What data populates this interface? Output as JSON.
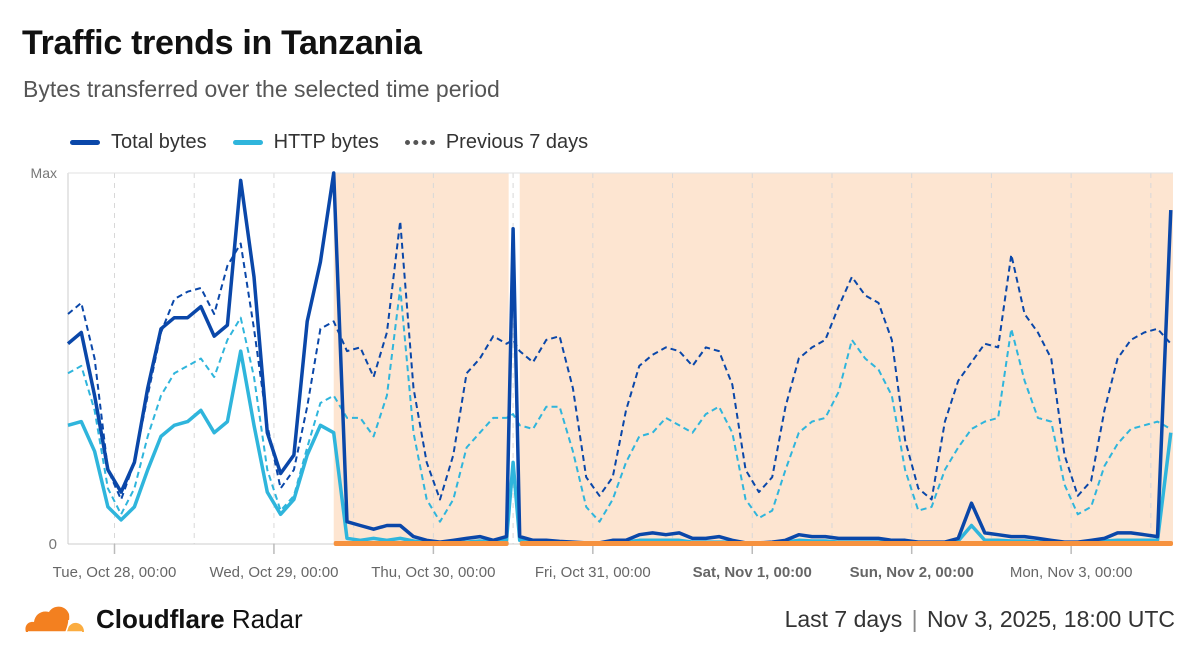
{
  "header": {
    "title": "Traffic trends in Tanzania",
    "subtitle": "Bytes transferred over the selected time period"
  },
  "footer": {
    "brand_bold": "Cloudflare",
    "brand_regular": "Radar",
    "period": "Last 7 days",
    "separator": "|",
    "timestamp": "Nov 3, 2025, 18:00 UTC"
  },
  "colors": {
    "total": "#0a47a9",
    "http": "#2fb5dc",
    "outage_shade": "#fde5d1",
    "outage_bar": "#f6923f",
    "logo_orange": "#f38020",
    "logo_light": "#fbad41"
  },
  "chart_data": {
    "type": "line",
    "ylabel_max": "Max",
    "ylabel_min": "0",
    "ylim": [
      0,
      100
    ],
    "xlim": [
      "2025-10-27T17:00",
      "2025-11-03T15:20"
    ],
    "grid": "vertical dashed every 12 hours",
    "legend_position": "top-left",
    "xticks": [
      {
        "t": "2025-10-28T00:00",
        "label": "Tue, Oct 28, 00:00",
        "bold": false
      },
      {
        "t": "2025-10-29T00:00",
        "label": "Wed, Oct 29, 00:00",
        "bold": false
      },
      {
        "t": "2025-10-30T00:00",
        "label": "Thu, Oct 30, 00:00",
        "bold": false
      },
      {
        "t": "2025-10-31T00:00",
        "label": "Fri, Oct 31, 00:00",
        "bold": false
      },
      {
        "t": "2025-11-01T00:00",
        "label": "Sat, Nov 1, 00:00",
        "bold": true
      },
      {
        "t": "2025-11-02T00:00",
        "label": "Sun, Nov 2, 00:00",
        "bold": true
      },
      {
        "t": "2025-11-03T00:00",
        "label": "Mon, Nov 3, 00:00",
        "bold": false
      }
    ],
    "shaded_periods": [
      [
        "2025-10-29T09:00",
        "2025-10-30T11:20"
      ],
      [
        "2025-10-30T13:00",
        "2025-11-03T15:20"
      ]
    ],
    "x": [
      "2025-10-27T17:00",
      "2025-10-27T19:00",
      "2025-10-27T21:00",
      "2025-10-27T23:00",
      "2025-10-28T01:00",
      "2025-10-28T03:00",
      "2025-10-28T05:00",
      "2025-10-28T07:00",
      "2025-10-28T09:00",
      "2025-10-28T11:00",
      "2025-10-28T13:00",
      "2025-10-28T15:00",
      "2025-10-28T17:00",
      "2025-10-28T19:00",
      "2025-10-28T21:00",
      "2025-10-28T23:00",
      "2025-10-29T01:00",
      "2025-10-29T03:00",
      "2025-10-29T05:00",
      "2025-10-29T07:00",
      "2025-10-29T09:00",
      "2025-10-29T11:00",
      "2025-10-29T13:00",
      "2025-10-29T15:00",
      "2025-10-29T17:00",
      "2025-10-29T19:00",
      "2025-10-29T21:00",
      "2025-10-29T23:00",
      "2025-10-30T01:00",
      "2025-10-30T03:00",
      "2025-10-30T05:00",
      "2025-10-30T07:00",
      "2025-10-30T09:00",
      "2025-10-30T11:00",
      "2025-10-30T12:00",
      "2025-10-30T13:00",
      "2025-10-30T15:00",
      "2025-10-30T17:00",
      "2025-10-30T19:00",
      "2025-10-30T21:00",
      "2025-10-30T23:00",
      "2025-10-31T01:00",
      "2025-10-31T03:00",
      "2025-10-31T05:00",
      "2025-10-31T07:00",
      "2025-10-31T09:00",
      "2025-10-31T11:00",
      "2025-10-31T13:00",
      "2025-10-31T15:00",
      "2025-10-31T17:00",
      "2025-10-31T19:00",
      "2025-10-31T21:00",
      "2025-10-31T23:00",
      "2025-11-01T01:00",
      "2025-11-01T03:00",
      "2025-11-01T05:00",
      "2025-11-01T07:00",
      "2025-11-01T09:00",
      "2025-11-01T11:00",
      "2025-11-01T13:00",
      "2025-11-01T15:00",
      "2025-11-01T17:00",
      "2025-11-01T19:00",
      "2025-11-01T21:00",
      "2025-11-01T23:00",
      "2025-11-02T01:00",
      "2025-11-02T03:00",
      "2025-11-02T05:00",
      "2025-11-02T07:00",
      "2025-11-02T09:00",
      "2025-11-02T11:00",
      "2025-11-02T13:00",
      "2025-11-02T15:00",
      "2025-11-02T17:00",
      "2025-11-02T19:00",
      "2025-11-02T21:00",
      "2025-11-02T23:00",
      "2025-11-03T01:00",
      "2025-11-03T03:00",
      "2025-11-03T05:00",
      "2025-11-03T07:00",
      "2025-11-03T09:00",
      "2025-11-03T11:00",
      "2025-11-03T13:00",
      "2025-11-03T15:00"
    ],
    "series": [
      {
        "name": "Total bytes",
        "style": "solid",
        "color": "#0a47a9",
        "values": [
          54,
          57,
          40,
          20,
          14,
          22,
          42,
          58,
          61,
          61,
          64,
          56,
          59,
          98,
          72,
          30,
          19,
          24,
          60,
          76,
          100,
          6,
          5,
          4,
          5,
          5,
          2,
          1,
          0.5,
          1,
          1.5,
          2,
          1,
          2,
          85,
          2,
          1,
          1,
          0.7,
          0.5,
          0.3,
          0.3,
          1,
          1,
          2.5,
          3,
          2.5,
          3,
          1.5,
          1.5,
          2,
          1,
          0.3,
          0.3,
          0.5,
          1,
          2.5,
          2,
          2,
          1.5,
          1.5,
          1.5,
          1.5,
          1,
          1,
          0.5,
          0.5,
          0.5,
          1.5,
          11,
          3,
          2.5,
          2,
          2,
          1.5,
          1,
          0.5,
          0.5,
          1,
          1.5,
          3,
          3,
          2.5,
          2,
          90
        ]
      },
      {
        "name": "HTTP bytes",
        "style": "solid",
        "color": "#2fb5dc",
        "values": [
          32,
          33,
          25,
          10,
          6.5,
          10,
          20,
          29,
          32,
          33,
          36,
          30,
          33,
          52,
          32,
          14,
          8,
          12,
          24,
          32,
          30,
          1.5,
          1,
          1.5,
          1,
          1.5,
          0.8,
          0.3,
          0.2,
          0.3,
          0.5,
          0.8,
          0.5,
          1,
          22,
          1,
          0.5,
          0.5,
          0.3,
          0.3,
          0.3,
          0.3,
          0.5,
          0.5,
          1,
          1,
          1,
          1,
          0.5,
          0.5,
          0.5,
          0.5,
          0.3,
          0.3,
          0.3,
          0.5,
          1,
          0.8,
          0.8,
          0.5,
          0.5,
          0.5,
          0.5,
          0.5,
          0.5,
          0.3,
          0.3,
          0.3,
          0.8,
          5,
          1,
          1,
          0.8,
          0.8,
          0.5,
          0.5,
          0.3,
          0.3,
          0.5,
          0.8,
          1,
          1,
          1,
          1,
          30
        ]
      },
      {
        "name": "Previous 7 days",
        "style": "dashed",
        "color": "#0a47a9",
        "of": "Total bytes",
        "values": [
          62,
          65,
          50,
          20,
          12,
          22,
          40,
          57,
          66,
          68,
          69,
          62,
          75,
          81,
          58,
          32,
          15,
          20,
          37,
          58,
          60,
          52,
          53,
          45,
          57,
          87,
          42,
          22,
          12,
          24,
          46,
          50,
          56,
          54,
          55,
          52,
          49,
          55,
          56,
          42,
          18,
          13,
          18,
          36,
          48,
          51,
          53,
          52,
          48,
          53,
          52,
          43,
          20,
          14,
          18,
          37,
          50,
          53,
          55,
          64,
          72,
          67,
          65,
          55,
          28,
          15,
          12,
          33,
          44,
          49,
          54,
          53,
          78,
          62,
          57,
          50,
          24,
          13,
          17,
          36,
          50,
          55,
          57,
          58,
          54
        ]
      },
      {
        "name": "Previous 7 days",
        "style": "dashed",
        "color": "#2fb5dc",
        "of": "HTTP bytes",
        "values": [
          46,
          48,
          36,
          15,
          8,
          15,
          29,
          40,
          46,
          48,
          50,
          45,
          55,
          61,
          45,
          20,
          9,
          13,
          26,
          38,
          40,
          34,
          34,
          29,
          40,
          69,
          30,
          12,
          6,
          12,
          26,
          30,
          34,
          34,
          35,
          32,
          31,
          37,
          37,
          25,
          10,
          6,
          12,
          22,
          29,
          30,
          34,
          32,
          30,
          35,
          37,
          30,
          12,
          7,
          9,
          20,
          30,
          33,
          34,
          41,
          55,
          50,
          47,
          40,
          20,
          9,
          10,
          20,
          26,
          31,
          33,
          34,
          58,
          44,
          34,
          33,
          16,
          8,
          10,
          21,
          27,
          31,
          32,
          33,
          31
        ]
      }
    ],
    "legend": [
      {
        "label": "Total bytes",
        "style": "solid",
        "color": "#0a47a9"
      },
      {
        "label": "HTTP bytes",
        "style": "solid",
        "color": "#2fb5dc"
      },
      {
        "label": "Previous 7 days",
        "style": "dashed",
        "color": "#555555"
      }
    ]
  }
}
